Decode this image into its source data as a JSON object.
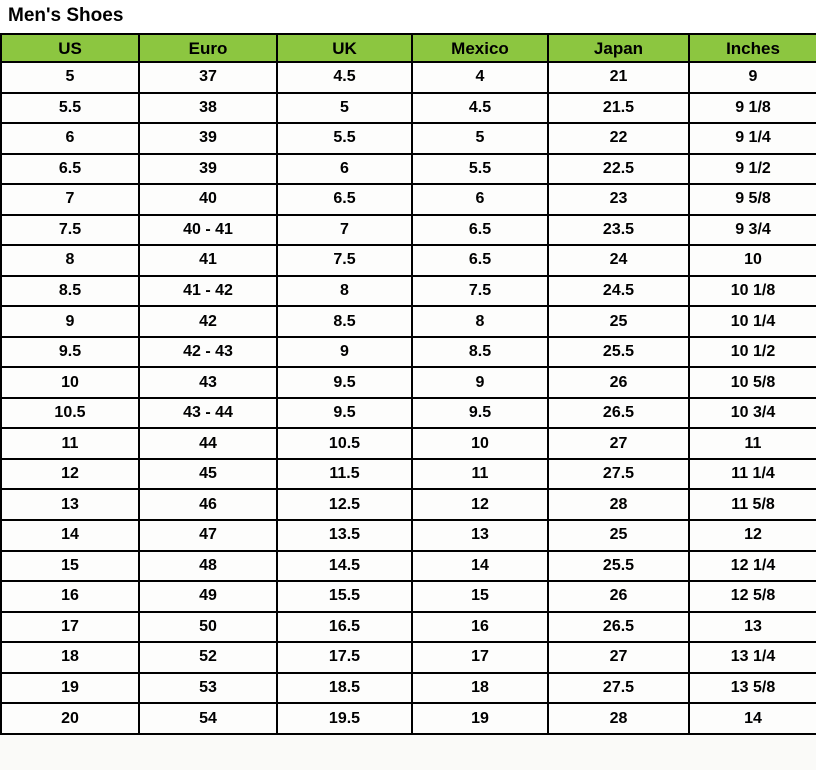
{
  "title": "Men's Shoes",
  "colors": {
    "header_bg": "#8CC640",
    "border": "#000000",
    "cell_bg": "#FDFDFC",
    "text": "#000000"
  },
  "chart_data": {
    "type": "table",
    "title": "Men's Shoes",
    "columns": [
      "US",
      "Euro",
      "UK",
      "Mexico",
      "Japan",
      "Inches"
    ],
    "rows": [
      [
        "5",
        "37",
        "4.5",
        "4",
        "21",
        "9"
      ],
      [
        "5.5",
        "38",
        "5",
        "4.5",
        "21.5",
        "9 1/8"
      ],
      [
        "6",
        "39",
        "5.5",
        "5",
        "22",
        "9 1/4"
      ],
      [
        "6.5",
        "39",
        "6",
        "5.5",
        "22.5",
        "9 1/2"
      ],
      [
        "7",
        "40",
        "6.5",
        "6",
        "23",
        "9 5/8"
      ],
      [
        "7.5",
        "40 - 41",
        "7",
        "6.5",
        "23.5",
        "9 3/4"
      ],
      [
        "8",
        "41",
        "7.5",
        "6.5",
        "24",
        "10"
      ],
      [
        "8.5",
        "41 - 42",
        "8",
        "7.5",
        "24.5",
        "10 1/8"
      ],
      [
        "9",
        "42",
        "8.5",
        "8",
        "25",
        "10 1/4"
      ],
      [
        "9.5",
        "42 - 43",
        "9",
        "8.5",
        "25.5",
        "10 1/2"
      ],
      [
        "10",
        "43",
        "9.5",
        "9",
        "26",
        "10 5/8"
      ],
      [
        "10.5",
        "43 - 44",
        "9.5",
        "9.5",
        "26.5",
        "10 3/4"
      ],
      [
        "11",
        "44",
        "10.5",
        "10",
        "27",
        "11"
      ],
      [
        "12",
        "45",
        "11.5",
        "11",
        "27.5",
        "11 1/4"
      ],
      [
        "13",
        "46",
        "12.5",
        "12",
        "28",
        "11 5/8"
      ],
      [
        "14",
        "47",
        "13.5",
        "13",
        "25",
        "12"
      ],
      [
        "15",
        "48",
        "14.5",
        "14",
        "25.5",
        "12 1/4"
      ],
      [
        "16",
        "49",
        "15.5",
        "15",
        "26",
        "12 5/8"
      ],
      [
        "17",
        "50",
        "16.5",
        "16",
        "26.5",
        "13"
      ],
      [
        "18",
        "52",
        "17.5",
        "17",
        "27",
        "13 1/4"
      ],
      [
        "19",
        "53",
        "18.5",
        "18",
        "27.5",
        "13 5/8"
      ],
      [
        "20",
        "54",
        "19.5",
        "19",
        "28",
        "14"
      ]
    ]
  }
}
